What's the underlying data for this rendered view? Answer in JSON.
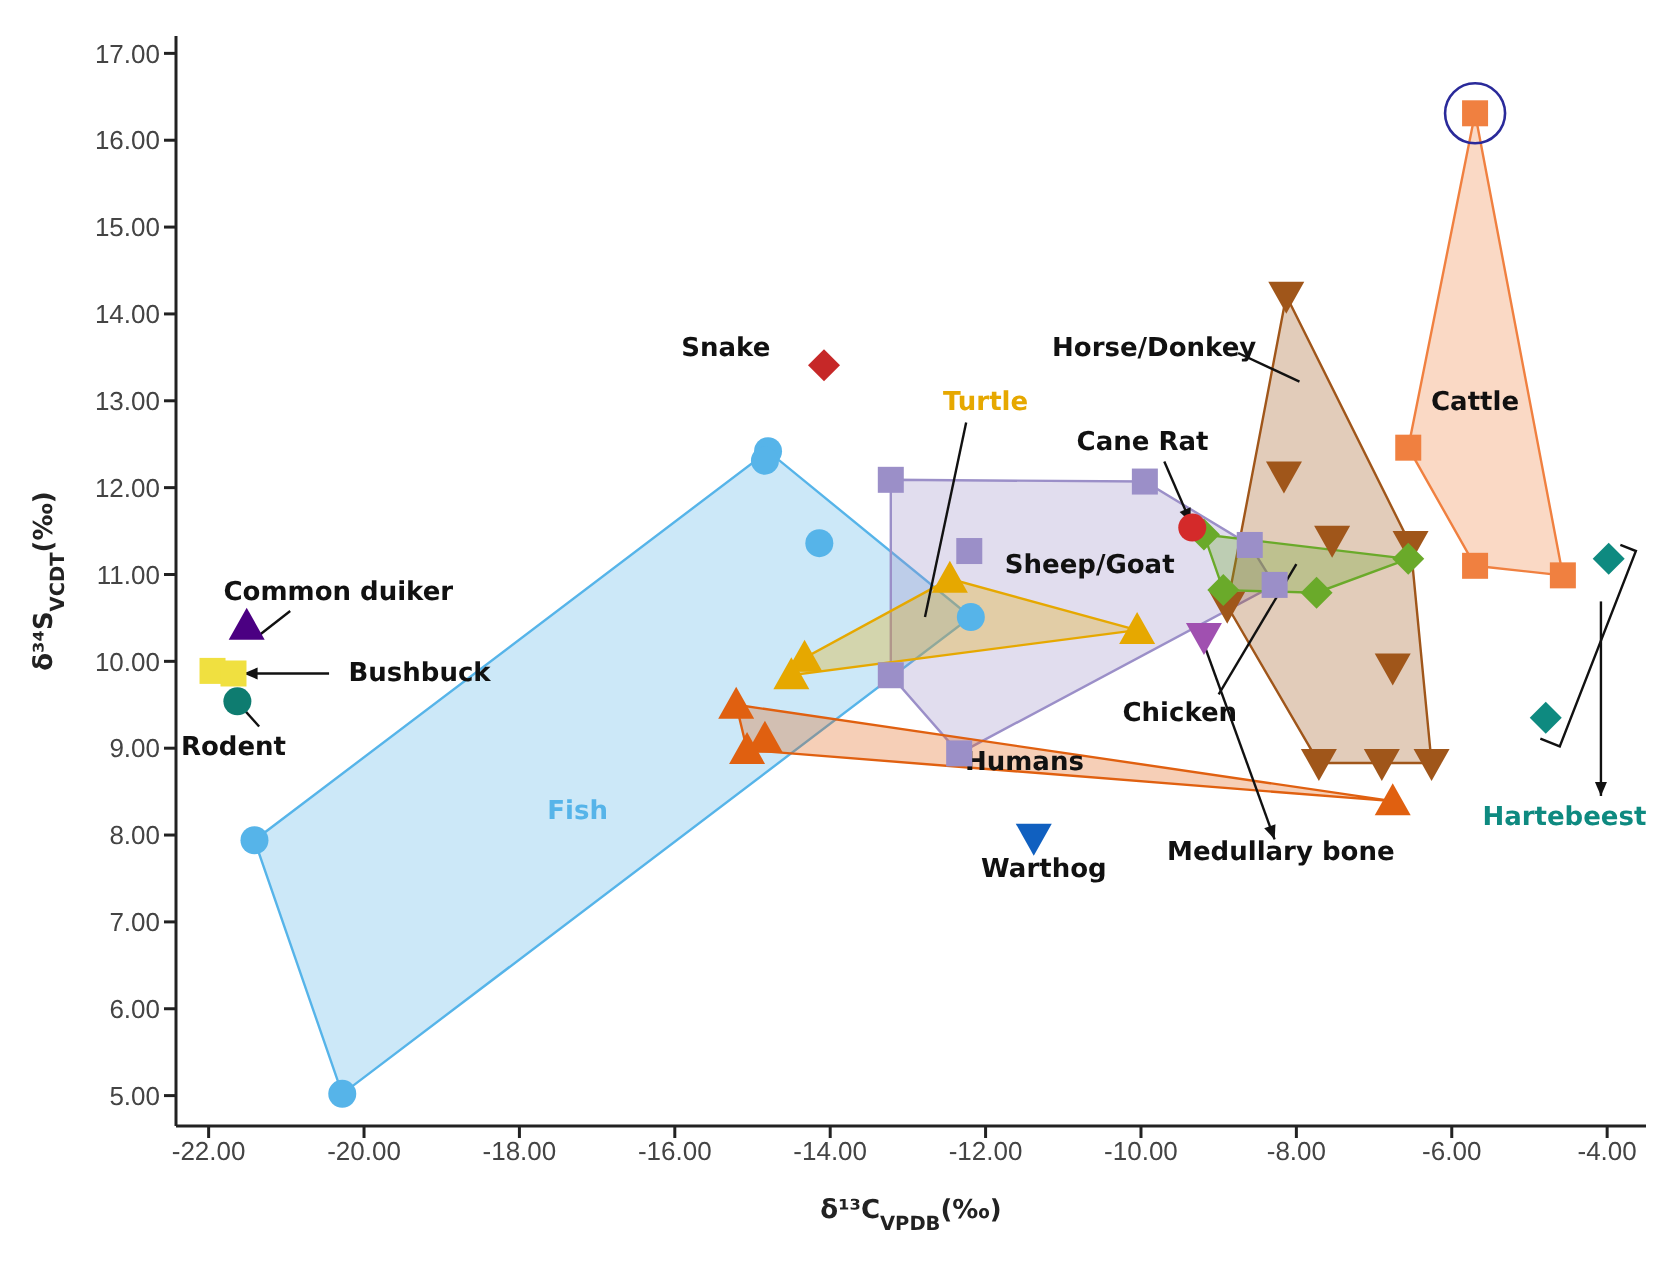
{
  "chart_data": {
    "type": "scatter",
    "xlabel": "δ¹³C$_{VPDB}$(‰)",
    "ylabel": "δ³⁴S$_{VCDT}$(‰)",
    "xlim": [
      -22.42,
      -3.5
    ],
    "ylim": [
      4.65,
      17.2
    ],
    "xticks": [
      {
        "value": -22,
        "label": "-22.00"
      },
      {
        "value": -20,
        "label": "-20.00"
      },
      {
        "value": -18,
        "label": "-18.00"
      },
      {
        "value": -16,
        "label": "-16.00"
      },
      {
        "value": -14,
        "label": "-14.00"
      },
      {
        "value": -12,
        "label": "-12.00"
      },
      {
        "value": -10,
        "label": "-10.00"
      },
      {
        "value": -8,
        "label": "-8.00"
      },
      {
        "value": -6,
        "label": "-6.00"
      },
      {
        "value": -4,
        "label": "-4.00"
      }
    ],
    "yticks": [
      {
        "value": 5,
        "label": "5.00"
      },
      {
        "value": 6,
        "label": "6.00"
      },
      {
        "value": 7,
        "label": "7.00"
      },
      {
        "value": 8,
        "label": "8.00"
      },
      {
        "value": 9,
        "label": "9.00"
      },
      {
        "value": 10,
        "label": "10.00"
      },
      {
        "value": 11,
        "label": "11.00"
      },
      {
        "value": 12,
        "label": "12.00"
      },
      {
        "value": 13,
        "label": "13.00"
      },
      {
        "value": 14,
        "label": "14.00"
      },
      {
        "value": 15,
        "label": "15.00"
      },
      {
        "value": 16,
        "label": "16.00"
      },
      {
        "value": 17,
        "label": "17.00"
      }
    ],
    "series": [
      {
        "name": "Fish",
        "color": "#56b4e9",
        "marker": "circle",
        "x": [
          -14.8,
          -14.84,
          -14.14,
          -12.19,
          -21.41,
          -20.28
        ],
        "values": [
          12.42,
          12.31,
          11.36,
          10.51,
          7.94,
          5.02
        ]
      },
      {
        "name": "Sheep/Goat",
        "color": "#9b8fc8",
        "marker": "square",
        "x": [
          -13.22,
          -9.95,
          -12.21,
          -8.6,
          -8.28,
          -13.22,
          -12.34
        ],
        "values": [
          12.09,
          12.07,
          11.27,
          11.34,
          10.88,
          9.84,
          8.94
        ]
      },
      {
        "name": "Turtle",
        "color": "#e6a800",
        "marker": "triangle",
        "x": [
          -14.33,
          -14.5,
          -12.46,
          -10.05
        ],
        "values": [
          10.04,
          9.84,
          10.95,
          10.36
        ]
      },
      {
        "name": "Humans",
        "color": "#e06010",
        "marker": "triangle",
        "x": [
          -15.21,
          -14.84,
          -15.07,
          -6.76
        ],
        "values": [
          9.5,
          9.11,
          8.98,
          8.39
        ]
      },
      {
        "name": "Horse/Donkey",
        "color": "#a0561a",
        "marker": "triangle-down",
        "x": [
          -8.13,
          -8.16,
          -7.54,
          -6.53,
          -6.76,
          -7.71,
          -6.9,
          -6.26,
          -8.89
        ],
        "values": [
          14.21,
          12.14,
          11.4,
          11.34,
          9.93,
          8.83,
          8.83,
          8.83,
          10.64
        ]
      },
      {
        "name": "Chicken",
        "color": "#6aaa2a",
        "marker": "diamond",
        "x": [
          -9.19,
          -8.94,
          -7.74,
          -6.56
        ],
        "values": [
          11.46,
          10.82,
          10.79,
          11.18
        ]
      },
      {
        "name": "Cattle",
        "color": "#f08040",
        "marker": "square",
        "x": [
          -5.7,
          -6.56,
          -5.7,
          -4.57
        ],
        "values": [
          16.31,
          12.46,
          11.1,
          10.99
        ]
      },
      {
        "name": "Cane Rat",
        "color": "#d42a2a",
        "marker": "circle",
        "x": [
          -9.34
        ],
        "values": [
          11.54
        ]
      },
      {
        "name": "Snake",
        "color": "#c62828",
        "marker": "diamond",
        "x": [
          -14.08
        ],
        "values": [
          13.41
        ]
      },
      {
        "name": "Hartebeest",
        "color": "#0e8a80",
        "marker": "diamond",
        "x": [
          -3.98,
          -4.79
        ],
        "values": [
          11.18,
          9.35
        ]
      },
      {
        "name": "Warthog",
        "color": "#1060c0",
        "marker": "triangle-down",
        "x": [
          -11.38
        ],
        "values": [
          7.97
        ]
      },
      {
        "name": "Medullary bone",
        "color": "#a050b0",
        "marker": "triangle-down",
        "x": [
          -9.19
        ],
        "values": [
          10.28
        ]
      },
      {
        "name": "Common duiker",
        "color": "#4b0082",
        "marker": "triangle",
        "x": [
          -21.51
        ],
        "values": [
          10.41
        ]
      },
      {
        "name": "Bushbuck",
        "color": "#f0e040",
        "marker": "square",
        "x": [
          -21.95,
          -21.68
        ],
        "values": [
          9.89,
          9.86
        ]
      },
      {
        "name": "Rodent",
        "color": "#0e7c70",
        "marker": "circle",
        "x": [
          -21.63
        ],
        "values": [
          9.54
        ]
      }
    ]
  }
}
